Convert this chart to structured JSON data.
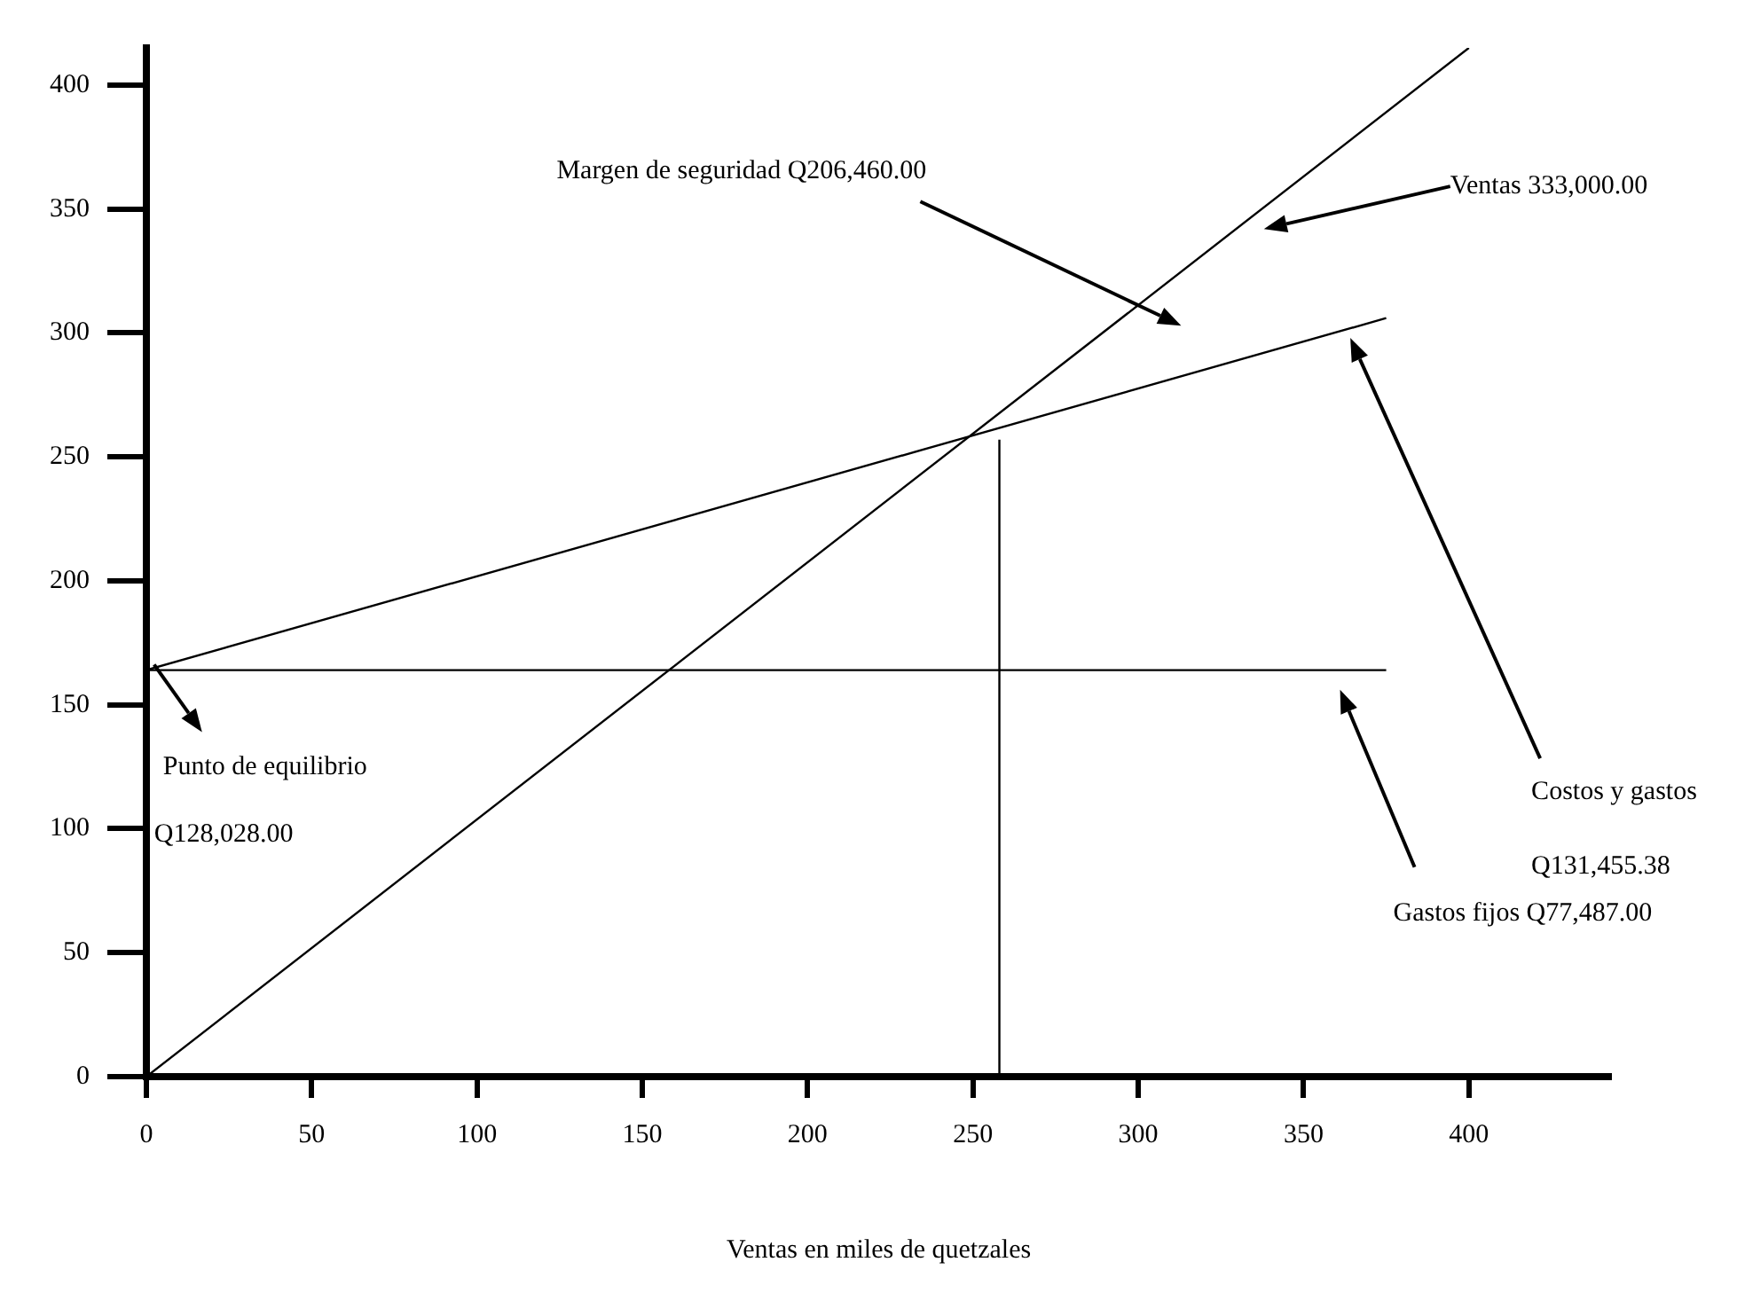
{
  "chart_data": {
    "type": "line",
    "xlabel": "Ventas en miles de quetzales",
    "xlim": [
      0,
      443
    ],
    "ylim": [
      0,
      415
    ],
    "xticks": [
      0,
      50,
      100,
      150,
      200,
      250,
      300,
      350,
      400
    ],
    "yticks": [
      0,
      50,
      100,
      150,
      200,
      250,
      300,
      350,
      400
    ],
    "grid": false,
    "legend": false,
    "marker": "none",
    "line_style": "solid",
    "series": [
      {
        "color": "#000000",
        "x": [
          0,
          400
        ],
        "values": [
          0,
          415
        ]
      },
      {
        "color": "#000000",
        "x": [
          0,
          375
        ],
        "values": [
          164,
          306
        ]
      },
      {
        "color": "#000000",
        "x": [
          0,
          375
        ],
        "values": [
          164,
          164
        ]
      },
      {
        "color": "#000000",
        "x": [
          258,
          258
        ],
        "values": [
          0,
          257
        ]
      }
    ],
    "annotations": [
      "Margen de seguridad Q206,460.00",
      "Ventas 333,000.00",
      "Costos y gastos",
      "Q131,455.38",
      "Gastos fijos Q77,487.00",
      "Punto de equilibrio",
      "Q128,028.00"
    ]
  }
}
